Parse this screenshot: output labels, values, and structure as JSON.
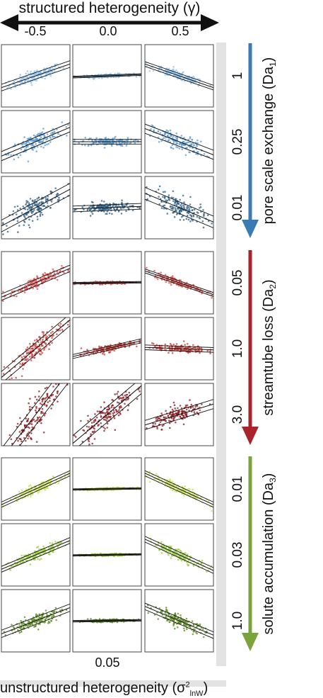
{
  "figure": {
    "top_title": "structured heterogeneity (γ)",
    "column_labels": [
      "-0.5",
      "0.0",
      "0.5"
    ],
    "bottom_tick": "0.05",
    "bottom_title_main": "unstructured heterogeneity (σ",
    "bottom_title_sup": "2",
    "bottom_title_sub": "lnW",
    "bottom_title_close": ")"
  },
  "chart_data": {
    "type": "scatter",
    "columns": [
      "-0.5",
      "0.0",
      "0.5"
    ],
    "groups": [
      {
        "name": "pore scale exchange",
        "label_main": "pore scale exchange (Da",
        "label_sub": "1",
        "label_close": ")",
        "color": "#3b7bb5",
        "row_labels": [
          "1",
          "0.25",
          "0.01"
        ],
        "row_colors": [
          "#8ec1ea",
          "#5b9bd0",
          "#2f5f86"
        ],
        "slopes": [
          [
            0.45,
            0.05,
            -0.45
          ],
          [
            0.55,
            0.0,
            -0.5
          ],
          [
            0.7,
            0.05,
            -0.55
          ]
        ],
        "spread": [
          [
            0.25,
            0.07,
            0.18
          ],
          [
            0.35,
            0.18,
            0.35
          ],
          [
            0.45,
            0.22,
            0.45
          ]
        ]
      },
      {
        "name": "streamtube loss",
        "label_main": "streamtube loss (Da",
        "label_sub": "2",
        "label_close": ")",
        "color": "#a8232b",
        "row_labels": [
          "0.05",
          "1.0",
          "3.0"
        ],
        "row_colors": [
          "#e0534f",
          "#c63a36",
          "#8e1a1f"
        ],
        "slopes": [
          [
            0.55,
            0.02,
            -0.45
          ],
          [
            1.1,
            0.3,
            -0.05
          ],
          [
            1.7,
            1.1,
            0.4
          ]
        ],
        "spread": [
          [
            0.25,
            0.06,
            0.15
          ],
          [
            0.45,
            0.15,
            0.18
          ],
          [
            0.8,
            0.6,
            0.35
          ]
        ]
      },
      {
        "name": "solute accumulation",
        "label_main": "solute accumulation (Da",
        "label_sub": "3",
        "label_close": ")",
        "color": "#7aa33a",
        "row_labels": [
          "0.01",
          "0.03",
          "1.0"
        ],
        "row_colors": [
          "#c6e052",
          "#9fce42",
          "#5f8c22"
        ],
        "slopes": [
          [
            0.6,
            0.02,
            -0.6
          ],
          [
            0.55,
            0.02,
            -0.6
          ],
          [
            0.5,
            0.02,
            -0.55
          ]
        ],
        "spread": [
          [
            0.2,
            0.05,
            0.2
          ],
          [
            0.22,
            0.05,
            0.22
          ],
          [
            0.28,
            0.06,
            0.25
          ]
        ]
      }
    ]
  }
}
